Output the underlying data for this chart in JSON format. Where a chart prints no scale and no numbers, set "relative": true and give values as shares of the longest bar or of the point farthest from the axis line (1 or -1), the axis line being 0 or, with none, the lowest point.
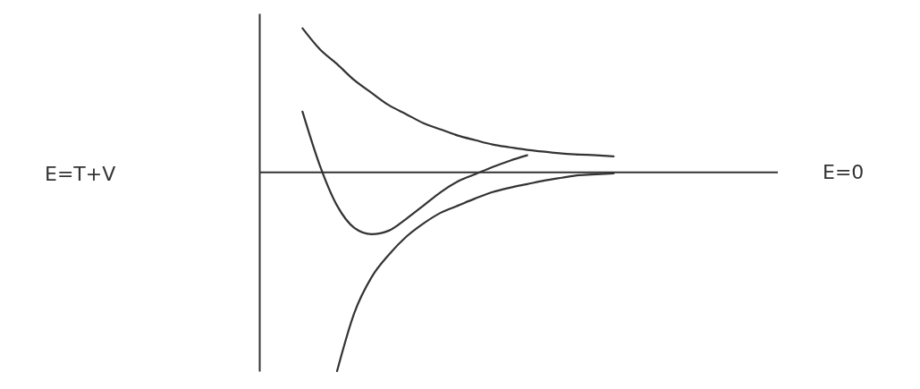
{
  "chart_data": {
    "type": "line",
    "relative": true,
    "annotations": [
      "E=T+V"
    ],
    "categories": [
      null,
      null,
      null,
      null,
      null,
      null,
      null,
      null,
      null,
      null,
      null,
      null,
      null,
      null,
      null,
      null,
      null,
      null,
      null,
      null,
      null,
      null,
      null,
      null,
      null,
      null,
      null,
      null,
      null,
      null
    ],
    "series": [
      {
        "color": "#333333",
        "values": [
          null,
          null,
          0.725,
          0.62,
          0.545,
          0.464,
          0.4,
          0.338,
          0.293,
          0.248,
          0.216,
          0.185,
          0.162,
          0.14,
          0.126,
          0.113,
          0.104,
          0.095,
          0.09,
          0.086,
          0.081,
          null,
          null,
          null,
          null,
          null,
          null,
          null,
          null,
          null
        ]
      },
      {
        "color": "#333333",
        "values": [
          null,
          null,
          0.306,
          0.036,
          -0.167,
          -0.279,
          -0.311,
          -0.293,
          -0.234,
          -0.167,
          -0.099,
          -0.045,
          -0.009,
          0.027,
          0.059,
          0.086,
          null,
          null,
          null,
          null,
          null,
          null,
          null,
          null,
          null,
          null,
          null,
          null,
          null,
          null
        ]
      },
      {
        "color": "#333333",
        "values": [
          null,
          null,
          null,
          null,
          -1,
          -0.707,
          -0.527,
          -0.414,
          -0.324,
          -0.257,
          -0.203,
          -0.167,
          -0.131,
          -0.099,
          -0.077,
          -0.059,
          -0.041,
          -0.027,
          -0.014,
          -0.009,
          -0.005,
          null,
          null,
          null,
          null,
          null,
          null,
          null,
          null,
          null
        ]
      }
    ],
    "ref_lines": [
      {
        "axis": "y",
        "value": 0,
        "label": "E=0"
      }
    ],
    "line_style": "solid"
  }
}
